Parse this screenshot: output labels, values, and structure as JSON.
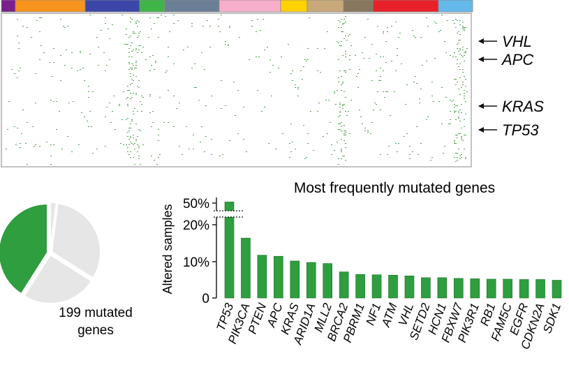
{
  "heatmap": {
    "cancer_type_colors": [
      "#7b1f8c",
      "#f7941d",
      "#3b46a8",
      "#3fb547",
      "#6b7f96",
      "#f7aecb",
      "#ffd200",
      "#c8a97a",
      "#87775e",
      "#e8202a",
      "#63b9ea"
    ],
    "cell_color": "#2f8f2f",
    "gene_labels": [
      "VHL",
      "APC",
      "KRAS",
      "TP53"
    ]
  },
  "pie": {
    "label_line1": "199 mutated",
    "label_line2": "genes",
    "slices": [
      {
        "fraction": 0.41,
        "color": "#2e9e3e"
      },
      {
        "fraction": 0.32,
        "color": "#e6e6e6"
      },
      {
        "fraction": 0.25,
        "color": "#e6e6e6"
      },
      {
        "fraction": 0.02,
        "color": "#e6e6e6"
      }
    ]
  },
  "chart_data": {
    "type": "bar",
    "title": "Most frequently mutated genes",
    "ylabel": "Altered samples",
    "xlabel": "",
    "categories": [
      "TP53",
      "PIK3CA",
      "PTEN",
      "APC",
      "KRAS",
      "ARID1A",
      "MLL2",
      "BRCA2",
      "PBRM1",
      "NF1",
      "ATM",
      "VHL",
      "SETD2",
      "HCN1",
      "FBXW7",
      "PIK3R1",
      "RB1",
      "FAM5C",
      "EGFR",
      "CDKN2A",
      "SDK1"
    ],
    "values": [
      52,
      16.5,
      11.8,
      11.5,
      10.2,
      9.8,
      9.5,
      7.2,
      6.5,
      6.4,
      6.3,
      6.1,
      5.6,
      5.6,
      5.4,
      5.3,
      5.2,
      5.2,
      5.1,
      5.1,
      4.9
    ],
    "yticks": [
      "0",
      "10%",
      "20%",
      "50%"
    ],
    "axis_break": true,
    "bar_color": "#2e9e3e"
  }
}
